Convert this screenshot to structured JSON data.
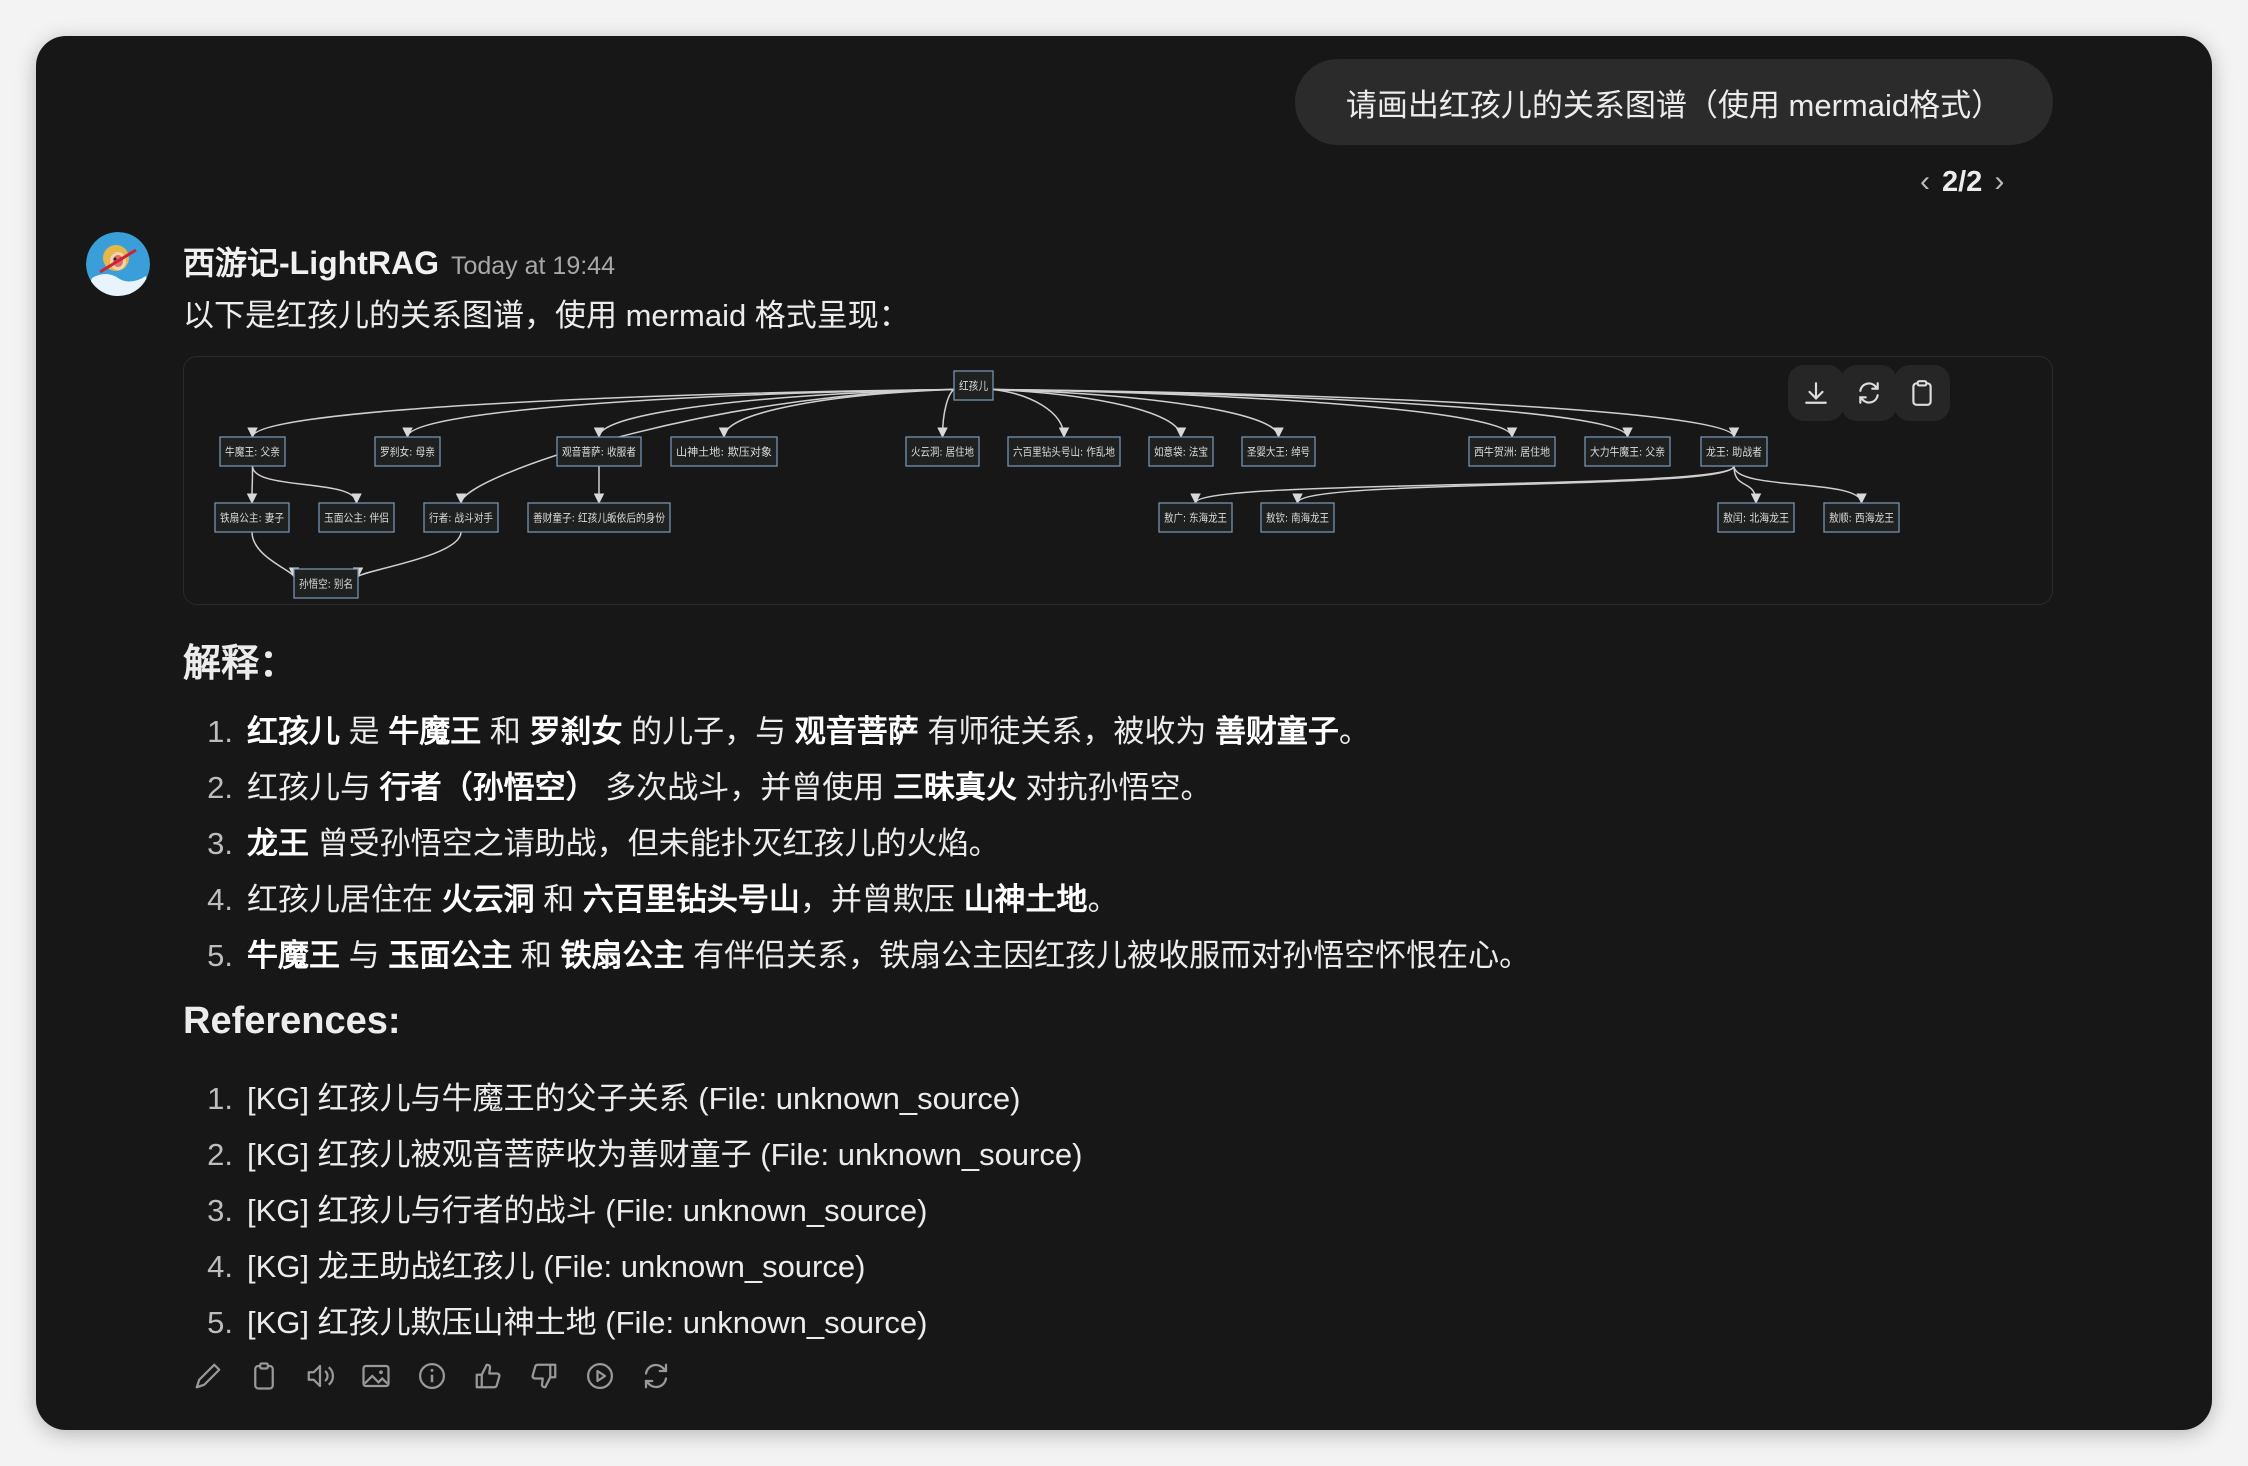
{
  "user_message": "请画出红孩儿的关系图谱（使用 mermaid格式）",
  "pager": {
    "label": "2/2"
  },
  "assistant": {
    "name": "西游记-LightRAG",
    "timestamp": "Today at 19:44",
    "intro": "以下是红孩儿的关系图谱，使用 mermaid 格式呈现："
  },
  "diagram": {
    "nodes": [
      {
        "id": "root",
        "label": "红孩儿"
      },
      {
        "id": "nmw",
        "label": "牛魔王: 父亲"
      },
      {
        "id": "lcn",
        "label": "罗刹女: 母亲"
      },
      {
        "id": "gy",
        "label": "观音菩萨: 收服者"
      },
      {
        "id": "ss",
        "label": "山神土地: 欺压对象"
      },
      {
        "id": "hyd",
        "label": "火云洞: 居住地"
      },
      {
        "id": "lbl",
        "label": "六百里钻头号山: 作乱地"
      },
      {
        "id": "ryd",
        "label": "如意袋: 法宝"
      },
      {
        "id": "sy",
        "label": "圣婴大王: 绰号"
      },
      {
        "id": "xn",
        "label": "西牛贺洲: 居住地"
      },
      {
        "id": "dl",
        "label": "大力牛魔王: 父亲"
      },
      {
        "id": "lw",
        "label": "龙王: 助战者"
      },
      {
        "id": "tsgz",
        "label": "铁扇公主: 妻子"
      },
      {
        "id": "ymgz",
        "label": "玉面公主: 伴侣"
      },
      {
        "id": "xz",
        "label": "行者: 战斗对手"
      },
      {
        "id": "sc",
        "label": "善财童子: 红孩儿皈依后的身份"
      },
      {
        "id": "ag",
        "label": "敖广: 东海龙王"
      },
      {
        "id": "aq",
        "label": "敖钦: 南海龙王"
      },
      {
        "id": "ar",
        "label": "敖闰: 北海龙王"
      },
      {
        "id": "as",
        "label": "敖顺: 西海龙王"
      },
      {
        "id": "swk",
        "label": "孙悟空: 别名"
      }
    ],
    "edges": [
      [
        "root",
        "nmw"
      ],
      [
        "root",
        "lcn"
      ],
      [
        "root",
        "xz"
      ],
      [
        "root",
        "gy"
      ],
      [
        "root",
        "ss"
      ],
      [
        "root",
        "hyd"
      ],
      [
        "root",
        "lbl"
      ],
      [
        "root",
        "ryd"
      ],
      [
        "root",
        "sy"
      ],
      [
        "root",
        "xn"
      ],
      [
        "root",
        "dl"
      ],
      [
        "root",
        "lw"
      ],
      [
        "nmw",
        "tsgz"
      ],
      [
        "nmw",
        "ymgz"
      ],
      [
        "gy",
        "sc"
      ],
      [
        "tsgz",
        "swk"
      ],
      [
        "xz",
        "swk"
      ],
      [
        "lw",
        "ag"
      ],
      [
        "lw",
        "aq"
      ],
      [
        "lw",
        "ar"
      ],
      [
        "lw",
        "as"
      ]
    ],
    "buttons": [
      {
        "icon": "download-icon"
      },
      {
        "icon": "refresh-icon"
      },
      {
        "icon": "clipboard-icon"
      }
    ]
  },
  "explanation": {
    "heading": "解释：",
    "items": [
      {
        "num": "1.",
        "segments": [
          {
            "t": "红孩儿",
            "b": true
          },
          {
            "t": " 是 "
          },
          {
            "t": "牛魔王",
            "b": true
          },
          {
            "t": " 和 "
          },
          {
            "t": "罗刹女",
            "b": true
          },
          {
            "t": " 的儿子，与 "
          },
          {
            "t": "观音菩萨",
            "b": true
          },
          {
            "t": " 有师徒关系，被收为 "
          },
          {
            "t": "善财童子",
            "b": true
          },
          {
            "t": "。"
          }
        ]
      },
      {
        "num": "2.",
        "segments": [
          {
            "t": "红孩儿与 "
          },
          {
            "t": "行者（孙悟空）",
            "b": true
          },
          {
            "t": " 多次战斗，并曾使用 "
          },
          {
            "t": "三昧真火",
            "b": true
          },
          {
            "t": " 对抗孙悟空。"
          }
        ]
      },
      {
        "num": "3.",
        "segments": [
          {
            "t": "龙王",
            "b": true
          },
          {
            "t": " 曾受孙悟空之请助战，但未能扑灭红孩儿的火焰。"
          }
        ]
      },
      {
        "num": "4.",
        "segments": [
          {
            "t": "红孩儿居住在 "
          },
          {
            "t": "火云洞",
            "b": true
          },
          {
            "t": " 和 "
          },
          {
            "t": "六百里钻头号山",
            "b": true
          },
          {
            "t": "，并曾欺压 "
          },
          {
            "t": "山神土地",
            "b": true
          },
          {
            "t": "。"
          }
        ]
      },
      {
        "num": "5.",
        "segments": [
          {
            "t": "牛魔王",
            "b": true
          },
          {
            "t": " 与 "
          },
          {
            "t": "玉面公主",
            "b": true
          },
          {
            "t": " 和 "
          },
          {
            "t": "铁扇公主",
            "b": true
          },
          {
            "t": " 有伴侣关系，铁扇公主因红孩儿被收服而对孙悟空怀恨在心。"
          }
        ]
      }
    ]
  },
  "references": {
    "heading": "References:",
    "items": [
      {
        "num": "1.",
        "text": "[KG] 红孩儿与牛魔王的父子关系 (File: unknown_source)"
      },
      {
        "num": "2.",
        "text": "[KG] 红孩儿被观音菩萨收为善财童子 (File: unknown_source)"
      },
      {
        "num": "3.",
        "text": "[KG] 红孩儿与行者的战斗 (File: unknown_source)"
      },
      {
        "num": "4.",
        "text": "[KG] 龙王助战红孩儿 (File: unknown_source)"
      },
      {
        "num": "5.",
        "text": "[KG] 红孩儿欺压山神土地 (File: unknown_source)"
      }
    ]
  },
  "actions": [
    "edit-icon",
    "copy-icon",
    "read-aloud-icon",
    "image-icon",
    "info-icon",
    "thumbs-up-icon",
    "thumbs-down-icon",
    "play-icon",
    "regenerate-icon"
  ],
  "colors": {
    "background": "#171717",
    "bubble": "#2b2b2b",
    "node_border": "#7892b0",
    "avatar": "#3a9fd8"
  }
}
